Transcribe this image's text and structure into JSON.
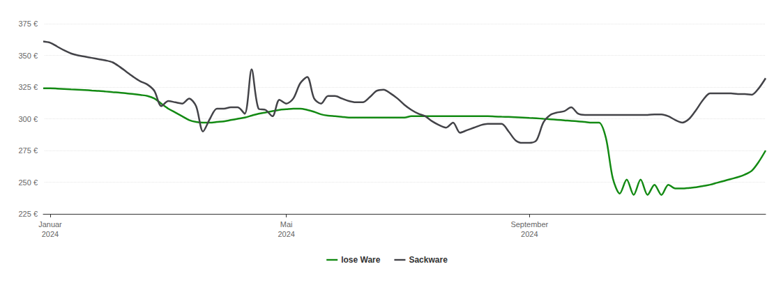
{
  "chart_data": {
    "type": "line",
    "categories": [
      null,
      "Januar\n2024",
      null,
      null,
      null,
      null,
      null,
      null,
      null,
      null,
      null,
      null,
      null,
      null,
      null,
      null,
      null,
      null,
      null,
      null,
      null,
      null,
      null,
      null,
      null,
      null,
      null,
      null,
      null,
      null,
      null,
      null,
      null,
      null,
      null,
      "Mai\n2024",
      null,
      null,
      null,
      null,
      null,
      null,
      null,
      null,
      null,
      null,
      null,
      null,
      null,
      null,
      null,
      null,
      null,
      null,
      null,
      null,
      null,
      null,
      null,
      null,
      null,
      null,
      null,
      null,
      null,
      null,
      null,
      null,
      null,
      null,
      "September\n2024",
      null,
      null,
      null,
      null,
      null,
      null,
      null,
      null,
      null,
      null,
      null,
      null,
      null,
      null,
      null,
      null,
      null,
      null,
      null,
      null,
      null,
      null,
      null,
      null,
      null,
      null,
      null,
      null,
      null,
      null,
      null,
      null,
      null,
      null
    ],
    "series": [
      {
        "name": "lose Ware",
        "color": "#138a13",
        "values": [
          324,
          324,
          323.8,
          323.5,
          323.2,
          323,
          322.7,
          322.3,
          322,
          321.5,
          321,
          320.6,
          320,
          319.5,
          318.8,
          318,
          316,
          312,
          308,
          305,
          302,
          299,
          297.5,
          297,
          297,
          297.5,
          298,
          299,
          300,
          301,
          302.5,
          304,
          305,
          306,
          307,
          307.5,
          308,
          308,
          307,
          305.5,
          303.5,
          302.5,
          302,
          301.5,
          301,
          301,
          301,
          301,
          301,
          301,
          301,
          301,
          301,
          302,
          302,
          302,
          302,
          302,
          302,
          302,
          302,
          302,
          302,
          302,
          302,
          301.8,
          301.6,
          301.5,
          301.3,
          301,
          300.7,
          300.4,
          300,
          299.6,
          299.2,
          298.8,
          298.3,
          298,
          297.5,
          297,
          297,
          285,
          253,
          241,
          252,
          240,
          252,
          240,
          248,
          240,
          248,
          245,
          245,
          245.5,
          246,
          247,
          248,
          249.5,
          251,
          252.5,
          254,
          256,
          259,
          266,
          275
        ]
      },
      {
        "name": "Sackware",
        "color": "#434348",
        "values": [
          361,
          360,
          357,
          354,
          351.5,
          350,
          349,
          348,
          347,
          346,
          344.5,
          341,
          337,
          333,
          329.5,
          327,
          322,
          310,
          314,
          313,
          312,
          316,
          310,
          290,
          300,
          308,
          308,
          309,
          309,
          304,
          339,
          308,
          307,
          302,
          315,
          312,
          316,
          328,
          333,
          316,
          312,
          318,
          318,
          316,
          314,
          313,
          313,
          317,
          322,
          323,
          320,
          316,
          311,
          307,
          304,
          302,
          298,
          295,
          293,
          297,
          289,
          291,
          293,
          295,
          296,
          296,
          296,
          290,
          283,
          281,
          281,
          283,
          297,
          303,
          305,
          306,
          309,
          304,
          303,
          303,
          303,
          303,
          303,
          303,
          303,
          303,
          303,
          303,
          303.5,
          303.5,
          302,
          299,
          297,
          300,
          307,
          315,
          320,
          320,
          320,
          320,
          319.5,
          319.5,
          319,
          324,
          332
        ]
      }
    ],
    "ylim": [
      225,
      375
    ],
    "yticks": [
      {
        "value": 225,
        "label": "225 €"
      },
      {
        "value": 250,
        "label": "250 €"
      },
      {
        "value": 275,
        "label": "275 €"
      },
      {
        "value": 300,
        "label": "300 €"
      },
      {
        "value": 325,
        "label": "325 €"
      },
      {
        "value": 350,
        "label": "350 €"
      },
      {
        "value": 375,
        "label": "375 €"
      }
    ],
    "grid": true,
    "legend": "bottom"
  }
}
